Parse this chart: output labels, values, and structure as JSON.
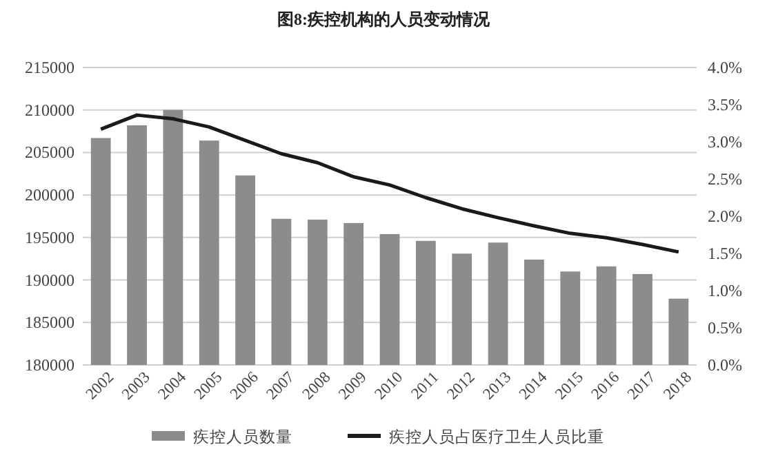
{
  "chart_data": {
    "type": "bar",
    "title": "图8:疾控机构的人员变动情况",
    "categories": [
      "2002",
      "2003",
      "2004",
      "2005",
      "2006",
      "2007",
      "2008",
      "2009",
      "2010",
      "2011",
      "2012",
      "2013",
      "2014",
      "2015",
      "2016",
      "2017",
      "2018"
    ],
    "series": [
      {
        "name": "疾控人员数量",
        "color": "#8c8c8f",
        "values": [
          206700,
          208200,
          210000,
          206400,
          202300,
          197200,
          197100,
          196700,
          195400,
          194600,
          193100,
          194400,
          192400,
          191000,
          191600,
          190700,
          187800
        ]
      },
      {
        "name": "疾控人员占医疗卫生人员比重",
        "type": "line",
        "axis": "y2",
        "color": "#1a1a1a",
        "values": [
          3.17,
          3.36,
          3.31,
          3.2,
          3.02,
          2.84,
          2.72,
          2.53,
          2.42,
          2.25,
          2.1,
          1.98,
          1.87,
          1.77,
          1.71,
          1.62,
          1.52
        ]
      }
    ],
    "ylim": [
      180000,
      215000
    ],
    "yticks": [
      180000,
      185000,
      190000,
      195000,
      200000,
      205000,
      210000,
      215000
    ],
    "y2lim": [
      0,
      4
    ],
    "y2ticks": [
      {
        "value": 0,
        "label": "0.0%"
      },
      {
        "value": 0.5,
        "label": "0.5%"
      },
      {
        "value": 1,
        "label": "1.0%"
      },
      {
        "value": 1.5,
        "label": "1.5%"
      },
      {
        "value": 2,
        "label": "2.0%"
      },
      {
        "value": 2.5,
        "label": "2.5%"
      },
      {
        "value": 3,
        "label": "3.0%"
      },
      {
        "value": 3.5,
        "label": "3.5%"
      },
      {
        "value": 4,
        "label": "4.0%"
      }
    ],
    "grid": "y",
    "legend": "bottom",
    "marker": "none",
    "line_style": "solid"
  }
}
